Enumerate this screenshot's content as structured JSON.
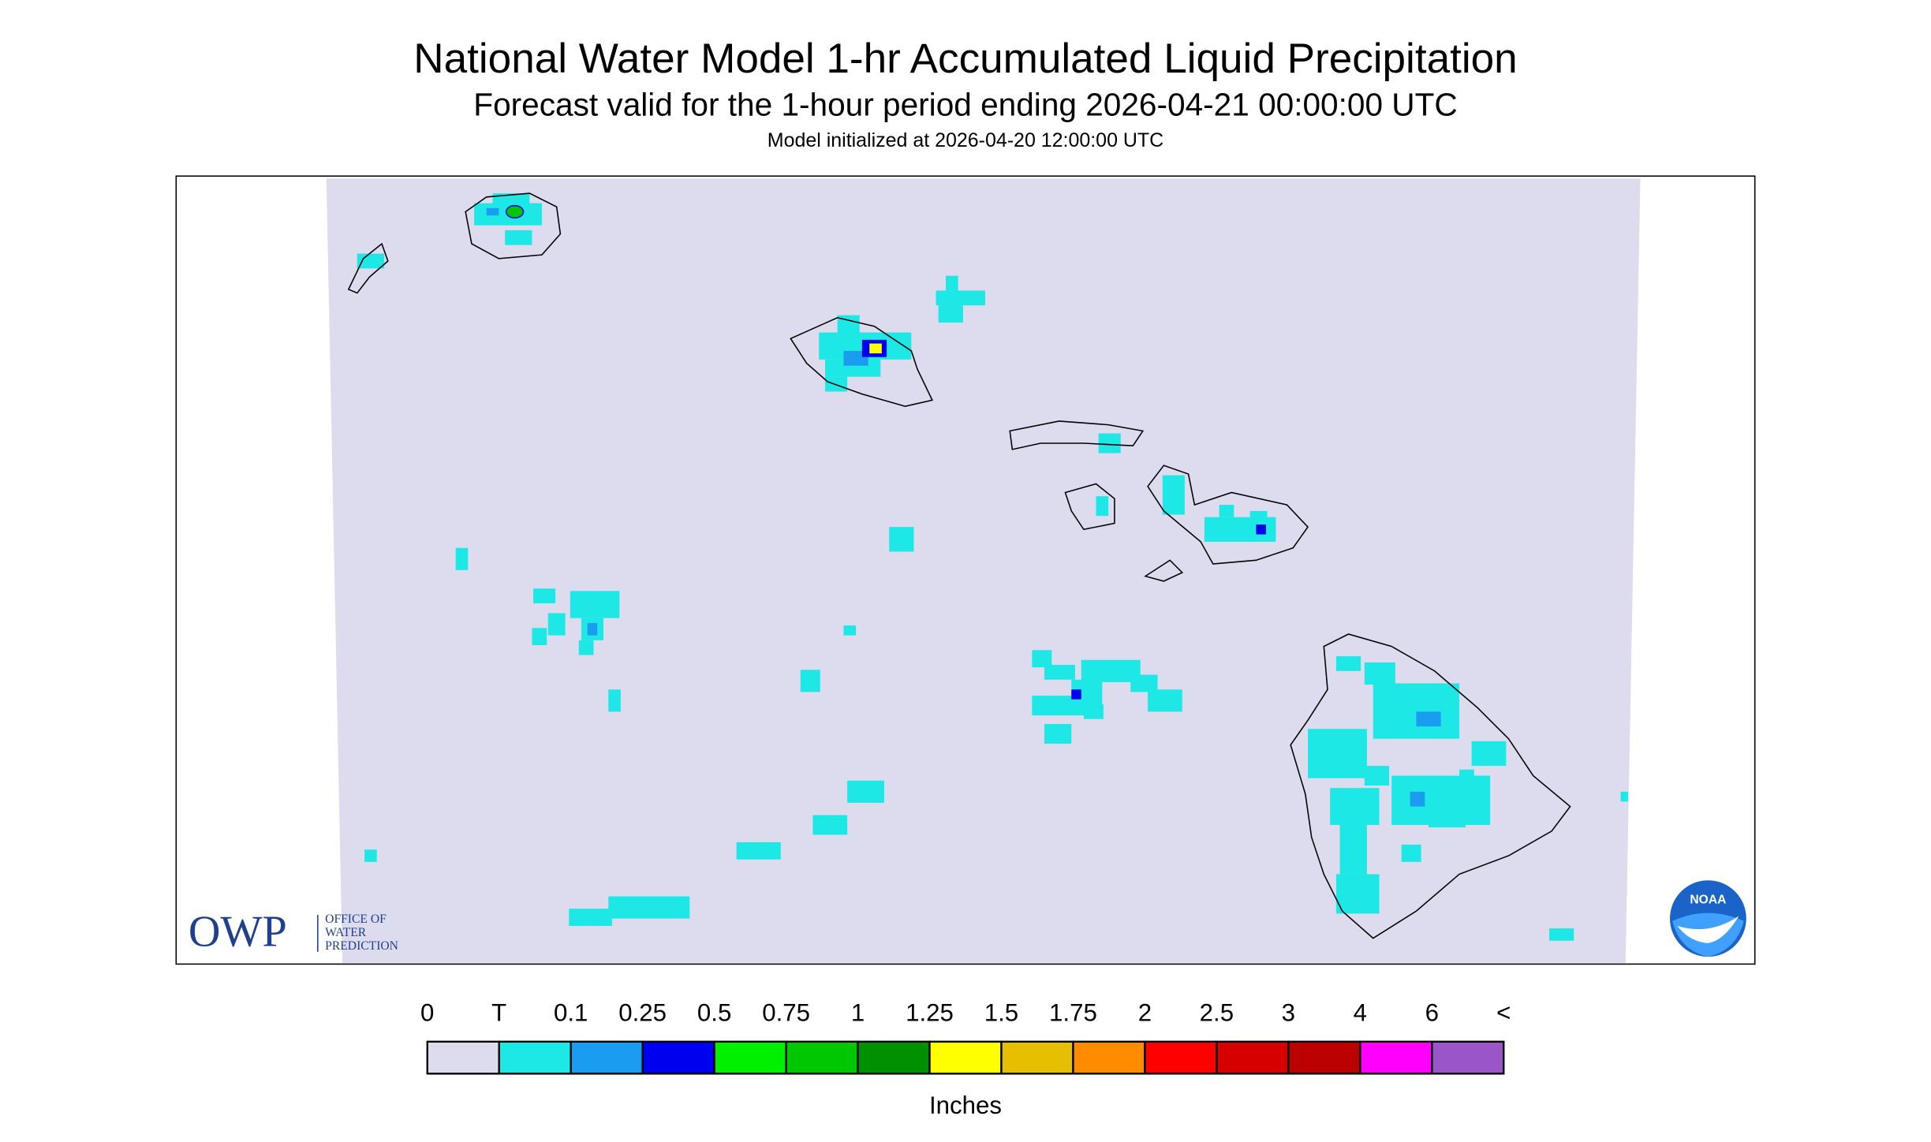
{
  "header": {
    "title": "National Water Model 1-hr Accumulated Liquid Precipitation",
    "subtitle": "Forecast valid for the 1-hour period ending 2026-04-21 00:00:00 UTC",
    "init": "Model initialized at 2026-04-20 12:00:00 UTC"
  },
  "logos": {
    "owp": "OWP",
    "owp_lines": [
      "OFFICE OF",
      "WATER",
      "PREDICTION"
    ],
    "noaa": "NOAA"
  },
  "legend": {
    "labels": [
      "0",
      "T",
      "0.1",
      "0.25",
      "0.5",
      "0.75",
      "1",
      "1.25",
      "1.5",
      "1.75",
      "2",
      "2.5",
      "3",
      "4",
      "6",
      "<"
    ],
    "colors": [
      "#dcdcee",
      "#1ee8e6",
      "#1a9cf0",
      "#0000f0",
      "#00f000",
      "#00c800",
      "#009000",
      "#ffff00",
      "#e6c000",
      "#ff8c00",
      "#ff0000",
      "#d60000",
      "#bc0000",
      "#ff00ff",
      "#9a55c8"
    ],
    "unit": "Inches"
  }
}
